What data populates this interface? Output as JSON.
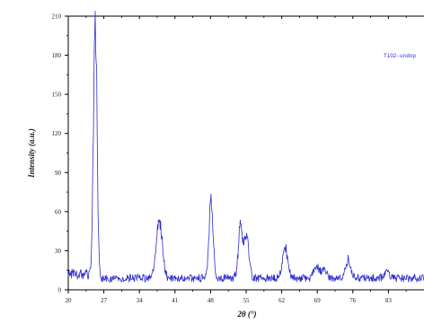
{
  "chart_data": {
    "type": "line",
    "title": "",
    "xlabel": "2θ (°)",
    "ylabel": "Intensity (a.u.)",
    "xlim": [
      20,
      90
    ],
    "ylim": [
      0,
      210
    ],
    "x_ticks": [
      20,
      27,
      34,
      41,
      48,
      55,
      62,
      69,
      76,
      83
    ],
    "y_ticks": [
      0,
      30,
      60,
      90,
      120,
      150,
      180,
      210
    ],
    "x_tick_labels": [
      "20",
      "27",
      "34",
      "41",
      "48",
      "55",
      "62",
      "69",
      "76",
      "83"
    ],
    "y_tick_labels": [
      "0",
      "30",
      "60",
      "90",
      "120",
      "150",
      "180",
      "210"
    ],
    "grid": false,
    "legend": {
      "position": "top-right",
      "entries": [
        "TiO2-undop"
      ]
    },
    "series": [
      {
        "name": "TiO2-undop",
        "color": "#2b2bd0",
        "baseline": 9,
        "noise": 3,
        "peaks": [
          {
            "x": 25.3,
            "y": 205,
            "width": 0.35
          },
          {
            "x": 37.9,
            "y": 50,
            "width": 0.6
          },
          {
            "x": 48.1,
            "y": 68,
            "width": 0.4
          },
          {
            "x": 53.9,
            "y": 47,
            "width": 0.45
          },
          {
            "x": 55.1,
            "y": 40,
            "width": 0.45
          },
          {
            "x": 62.7,
            "y": 32,
            "width": 0.5
          },
          {
            "x": 68.8,
            "y": 18,
            "width": 0.5
          },
          {
            "x": 70.3,
            "y": 16,
            "width": 0.5
          },
          {
            "x": 75.1,
            "y": 23,
            "width": 0.5
          },
          {
            "x": 82.7,
            "y": 15,
            "width": 0.5
          }
        ]
      }
    ]
  }
}
